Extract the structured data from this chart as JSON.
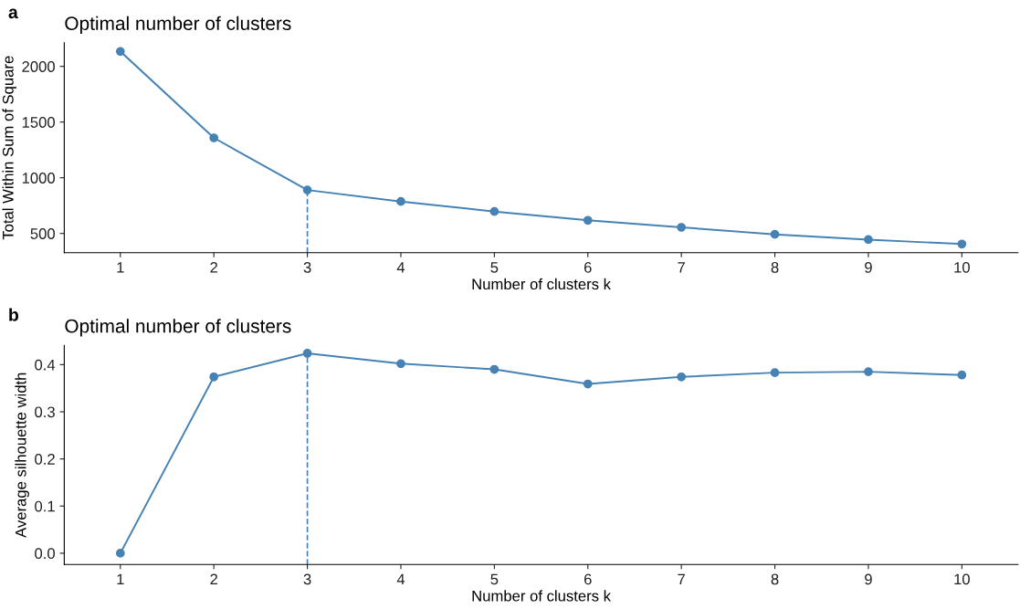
{
  "chart_data": [
    {
      "type": "line",
      "title": "Optimal number of clusters",
      "xlabel": "Number of clusters k",
      "ylabel": "Total Within Sum of Square",
      "annotations": [
        "a"
      ],
      "categories": [
        "1",
        "2",
        "3",
        "4",
        "5",
        "6",
        "7",
        "8",
        "9",
        "10"
      ],
      "series": [
        {
          "color": "#4682b4",
          "values": [
            2134,
            1358,
            890,
            787,
            697,
            618,
            555,
            492,
            445,
            405
          ]
        }
      ],
      "ylim": [
        327,
        2213
      ],
      "yticks": [
        500,
        1000,
        1500,
        2000
      ],
      "marker": "circle",
      "line_style": "solid",
      "grid": false,
      "legend": false,
      "ref_lines": [
        {
          "axis": "x",
          "value": "3",
          "color": "#4682b4",
          "line_style": "dashed"
        }
      ]
    },
    {
      "type": "line",
      "title": "Optimal number of clusters",
      "xlabel": "Number of clusters k",
      "ylabel": "Average silhouette width",
      "annotations": [
        "b"
      ],
      "categories": [
        "1",
        "2",
        "3",
        "4",
        "5",
        "6",
        "7",
        "8",
        "9",
        "10"
      ],
      "series": [
        {
          "color": "#4682b4",
          "values": [
            0.0,
            0.374,
            0.424,
            0.402,
            0.39,
            0.359,
            0.374,
            0.383,
            0.385,
            0.378
          ]
        }
      ],
      "ylim": [
        -0.024,
        0.441
      ],
      "yticks": [
        {
          "value": 0,
          "label": "0.0"
        },
        0.1,
        0.2,
        0.3,
        0.4
      ],
      "marker": "circle",
      "line_style": "solid",
      "grid": false,
      "legend": false,
      "ref_lines": [
        {
          "axis": "x",
          "value": "3",
          "color": "#4682b4",
          "line_style": "dashed"
        }
      ]
    }
  ]
}
